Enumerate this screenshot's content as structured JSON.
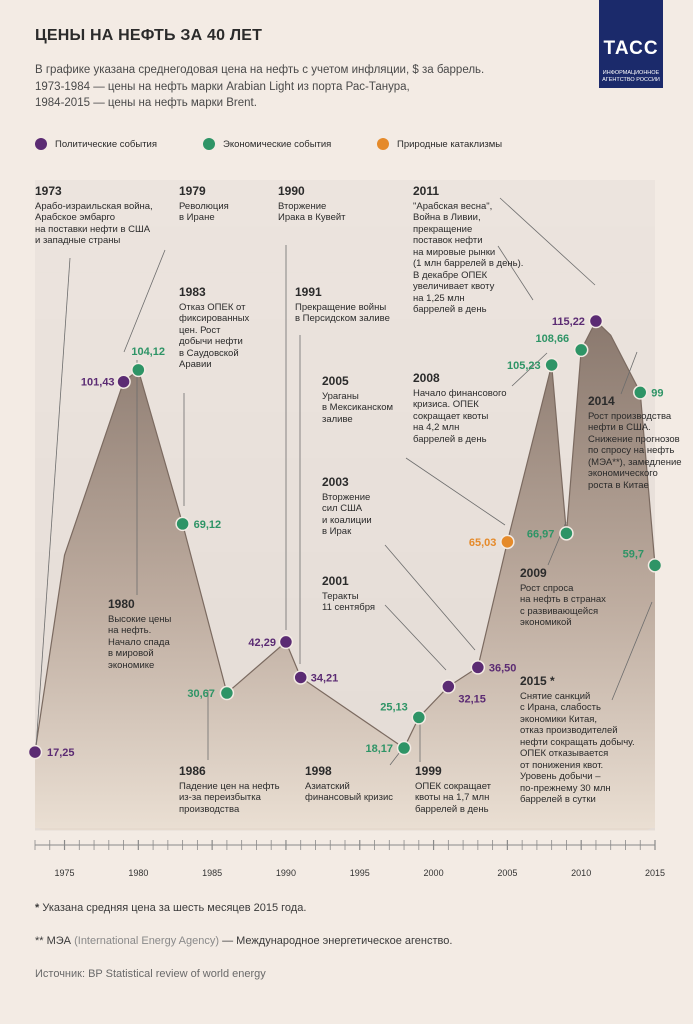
{
  "header": {
    "title": "ЦЕНЫ НА НЕФТЬ ЗА 40 ЛЕТ",
    "subtitle1": "В графике указана среднегодовая цена на нефть с учетом инфляции, $ за баррель.",
    "subtitle2": "1973-1984 — цены на нефть марки Arabian Light из порта Рас-Танура,",
    "subtitle3": "1984-2015 — цены на нефть марки Brent."
  },
  "logo": {
    "mark": "ТАСС",
    "line1": "ИНФОРМАЦИОННОЕ",
    "line2": "АГЕНТСТВО РОССИИ"
  },
  "legend": [
    {
      "label": "Политические события",
      "color": "#5b2b73"
    },
    {
      "label": "Экономические события",
      "color": "#2e9466"
    },
    {
      "label": "Природные катаклизмы",
      "color": "#e58a2a"
    }
  ],
  "colors": {
    "political": "#5b2b73",
    "economic": "#2e9466",
    "natural": "#e58a2a",
    "area_top": "#8a7a70",
    "area_bottom": "#eadfd3"
  },
  "chart_data": {
    "type": "area",
    "x_ticks": [
      1975,
      1980,
      1985,
      1990,
      1995,
      2000,
      2005,
      2010,
      2015
    ],
    "xlim": [
      1973,
      2015
    ],
    "ylim": [
      0,
      120
    ],
    "series": [
      {
        "x": [
          1973,
          1975,
          1979,
          1980,
          1983,
          1986,
          1990,
          1991,
          1998,
          1999,
          2001,
          2003,
          2005,
          2008,
          2009,
          2010,
          2011,
          2012,
          2014,
          2015
        ],
        "values": [
          17.25,
          62,
          101.43,
          104.12,
          69.12,
          30.67,
          42.29,
          34.21,
          18.17,
          25.13,
          32.15,
          36.5,
          65.03,
          105.23,
          66.97,
          108.66,
          115.22,
          112,
          99,
          59.7
        ]
      }
    ],
    "points": [
      {
        "year": 1973,
        "value": 17.25,
        "label": "17,25",
        "type": "political"
      },
      {
        "year": 1979,
        "value": 101.43,
        "label": "101,43",
        "type": "political"
      },
      {
        "year": 1980,
        "value": 104.12,
        "label": "104,12",
        "type": "economic"
      },
      {
        "year": 1983,
        "value": 69.12,
        "label": "69,12",
        "type": "economic"
      },
      {
        "year": 1986,
        "value": 30.67,
        "label": "30,67",
        "type": "economic"
      },
      {
        "year": 1990,
        "value": 42.29,
        "label": "42,29",
        "type": "political"
      },
      {
        "year": 1991,
        "value": 34.21,
        "label": "34,21",
        "type": "political"
      },
      {
        "year": 1998,
        "value": 18.17,
        "label": "18,17",
        "type": "economic"
      },
      {
        "year": 1999,
        "value": 25.13,
        "label": "25,13",
        "type": "economic"
      },
      {
        "year": 2001,
        "value": 32.15,
        "label": "32,15",
        "type": "political"
      },
      {
        "year": 2003,
        "value": 36.5,
        "label": "36,50",
        "type": "political"
      },
      {
        "year": 2005,
        "value": 65.03,
        "label": "65,03",
        "type": "natural"
      },
      {
        "year": 2008,
        "value": 105.23,
        "label": "105,23",
        "type": "economic"
      },
      {
        "year": 2009,
        "value": 66.97,
        "label": "66,97",
        "type": "economic"
      },
      {
        "year": 2010,
        "value": 108.66,
        "label": "108,66",
        "type": "economic"
      },
      {
        "year": 2011,
        "value": 115.22,
        "label": "115,22",
        "type": "political"
      },
      {
        "year": 2014,
        "value": 99,
        "label": "99",
        "type": "economic"
      },
      {
        "year": 2015,
        "value": 59.7,
        "label": "59,7",
        "type": "economic"
      }
    ],
    "annotations": [
      {
        "year": "1973",
        "text": [
          "Арабо-израильская война,",
          "Арабское эмбарго",
          "на поставки нефти в США",
          "и западные страны"
        ]
      },
      {
        "year": "1979",
        "text": [
          "Революция",
          "в Иране"
        ]
      },
      {
        "year": "1983",
        "text": [
          "Отказ ОПЕК от",
          "фиксированных",
          "цен. Рост",
          "добычи нефти",
          "в Саудовской",
          "Аравии"
        ]
      },
      {
        "year": "1980",
        "text": [
          "Высокие цены",
          "на нефть.",
          "Начало спада",
          "в мировой",
          "экономике"
        ]
      },
      {
        "year": "1986",
        "text": [
          "Падение цен на нефть",
          "из-за переизбытка",
          "производства"
        ]
      },
      {
        "year": "1990",
        "text": [
          "Вторжение",
          "Ирака в Кувейт"
        ]
      },
      {
        "year": "1991",
        "text": [
          "Прекращение войны",
          "в Персидском заливе"
        ]
      },
      {
        "year": "2005",
        "text": [
          "Ураганы",
          "в Мексиканском",
          "заливе"
        ]
      },
      {
        "year": "2003",
        "text": [
          "Вторжение",
          "сил США",
          "и коалиции",
          "в Ирак"
        ]
      },
      {
        "year": "2001",
        "text": [
          "Теракты",
          "11 сентября"
        ]
      },
      {
        "year": "1998",
        "text": [
          "Азиатский",
          "финансовый кризис"
        ]
      },
      {
        "year": "1999",
        "text": [
          "ОПЕК сокращает",
          "квоты на 1,7 млн",
          "баррелей в день"
        ]
      },
      {
        "year": "2011",
        "text": [
          "\"Арабская весна\",",
          "Война в Ливии,",
          "прекращение",
          "поставок нефти",
          "на мировые рынки",
          "(1 млн баррелей в день).",
          "В декабре ОПЕК",
          "увеличивает квоту",
          "на 1,25 млн",
          "баррелей в день"
        ]
      },
      {
        "year": "2008",
        "text": [
          "Начало финансового",
          "кризиса. ОПЕК",
          "сокращает квоты",
          "на 4,2 млн",
          "баррелей в день"
        ]
      },
      {
        "year": "2014",
        "text": [
          "Рост производства",
          "нефти в США.",
          "Снижение прогнозов",
          "по спросу на нефть",
          "(МЭА**), замедление",
          "экономического",
          "роста в Китае"
        ]
      },
      {
        "year": "2009",
        "text": [
          "Рост спроса",
          "на нефть в странах",
          "с развивающейся",
          "экономикой"
        ]
      },
      {
        "year": "2015 *",
        "text": [
          "Снятие санкций",
          "с Ирана, слабость",
          "экономики Китая,",
          "отказ производителей",
          "нефти сокращать добычу.",
          "ОПЕК отказывается",
          "от понижения квот.",
          "Уровень добычи –",
          "по-прежнему 30 млн",
          "баррелей в сутки"
        ]
      }
    ]
  },
  "footer": {
    "note1": "Указана средняя цена за шесть месяцев 2015 года.",
    "note1_mark": "*",
    "note2_mark": "** МЭА",
    "note2_paren": "(International Energy Agency)",
    "note2_rest": "— Международное энергетическое агенство.",
    "source": "Источник: BP Statistical review of world energy"
  }
}
